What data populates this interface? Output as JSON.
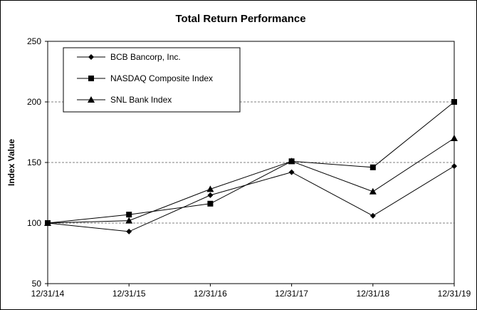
{
  "chart_data": {
    "type": "line",
    "title": "Total Return Performance",
    "xlabel": "",
    "ylabel": "Index Value",
    "categories": [
      "12/31/14",
      "12/31/15",
      "12/31/16",
      "12/31/17",
      "12/31/18",
      "12/31/19"
    ],
    "ylim": [
      50,
      250
    ],
    "yticks": [
      50,
      100,
      150,
      200,
      250
    ],
    "grid": "horizontal dashed",
    "legend_position": "top-left",
    "series": [
      {
        "name": "BCB Bancorp, Inc.",
        "marker": "diamond",
        "values": [
          100,
          93,
          123,
          142,
          106,
          147
        ]
      },
      {
        "name": "NASDAQ Composite Index",
        "marker": "square",
        "values": [
          100,
          107,
          116,
          151,
          146,
          200
        ]
      },
      {
        "name": "SNL Bank Index",
        "marker": "triangle",
        "values": [
          100,
          102,
          128,
          151,
          126,
          170
        ]
      }
    ],
    "colors": {
      "line": "#000000",
      "grid": "#808080",
      "background": "#ffffff"
    }
  }
}
